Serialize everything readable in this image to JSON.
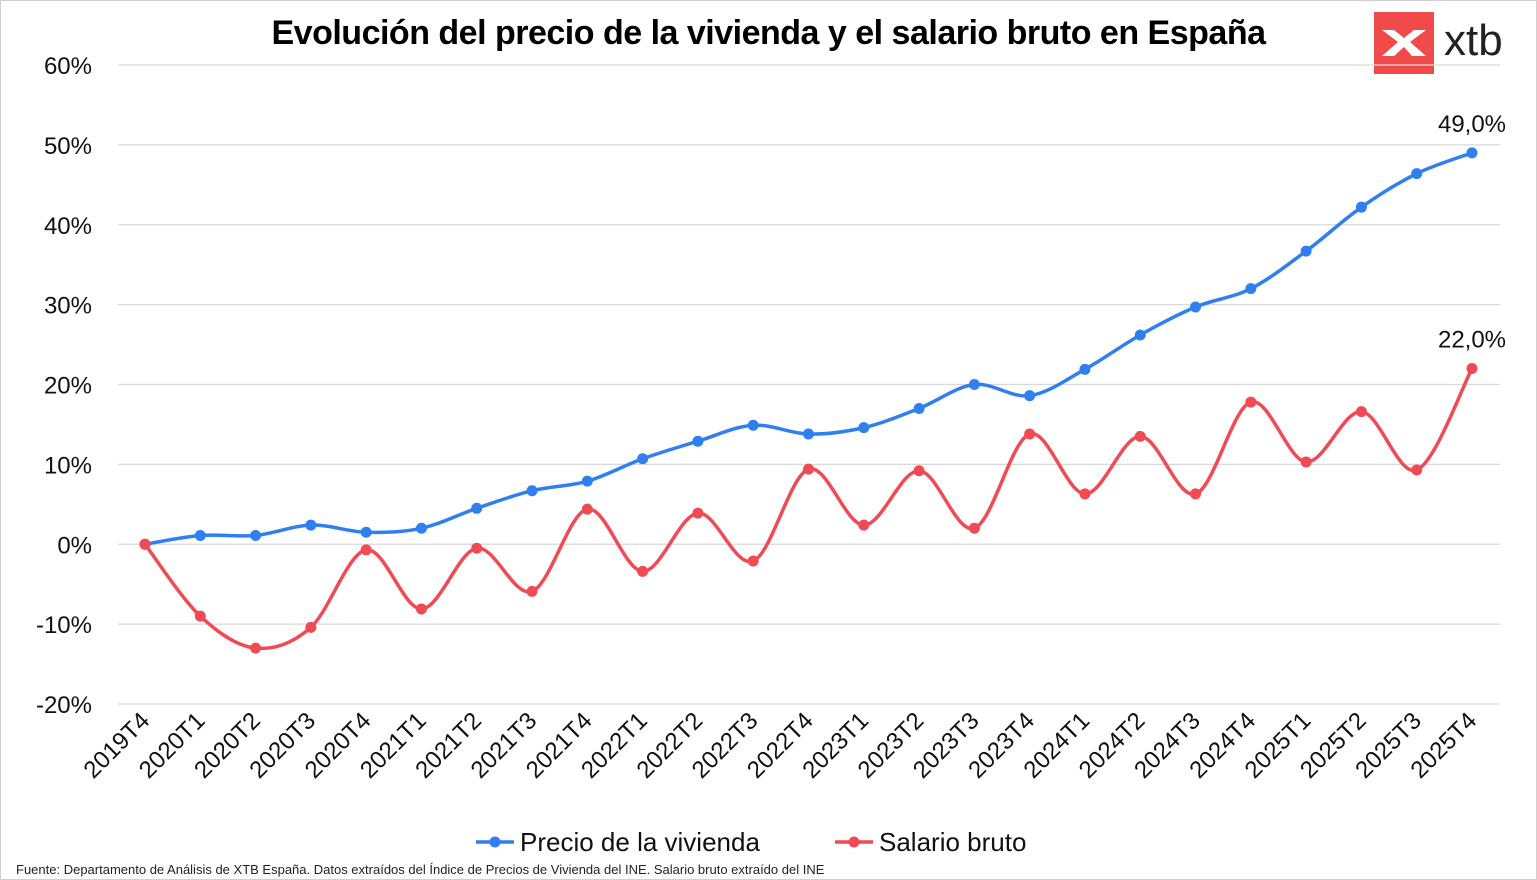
{
  "title": "Evolución del precio de la vivienda y el salario bruto en España",
  "logo": {
    "text": "xtb",
    "icon": "xtb-x-logo-icon",
    "color": "#f04a4a"
  },
  "source": "Fuente: Departamento de Análisis de XTB España. Datos extraídos del Índice de Precios de Vivienda del INE. Salario bruto extraído del INE",
  "chart_data": {
    "type": "line",
    "title": "Evolución del precio de la vivienda y el salario bruto en España",
    "categories": [
      "2019T4",
      "2020T1",
      "2020T2",
      "2020T3",
      "2020T4",
      "2021T1",
      "2021T2",
      "2021T3",
      "2021T4",
      "2022T1",
      "2022T2",
      "2022T3",
      "2022T4",
      "2023T1",
      "2023T2",
      "2023T3",
      "2023T4",
      "2024T1",
      "2024T2",
      "2024T3",
      "2024T4",
      "2025T1",
      "2025T2",
      "2025T3",
      "2025T4"
    ],
    "y_ticks": [
      "60%",
      "50%",
      "40%",
      "30%",
      "20%",
      "10%",
      "0%",
      "-10%",
      "-20%"
    ],
    "ylim": [
      -20,
      60
    ],
    "grid": true,
    "legend": "bottom",
    "series": [
      {
        "name": "Precio de la vivienda",
        "color": "#2f7ff0",
        "values": [
          0,
          1.1,
          1.1,
          2.4,
          1.5,
          2.0,
          4.5,
          6.7,
          7.9,
          10.7,
          12.9,
          14.9,
          13.8,
          14.6,
          17.0,
          20.0,
          18.6,
          21.9,
          26.2,
          29.7,
          32.0,
          36.7,
          42.2,
          46.4,
          49.0
        ],
        "end_label": "49,0%"
      },
      {
        "name": "Salario bruto",
        "color": "#f04a55",
        "values": [
          0,
          -9.0,
          -13.0,
          -10.4,
          -0.7,
          -8.1,
          -0.5,
          -5.9,
          4.4,
          -3.4,
          3.9,
          -2.1,
          9.4,
          2.4,
          9.2,
          2.0,
          13.8,
          6.3,
          13.5,
          6.3,
          17.8,
          10.3,
          16.6,
          9.3,
          22.0
        ],
        "end_label": "22,0%"
      }
    ]
  }
}
